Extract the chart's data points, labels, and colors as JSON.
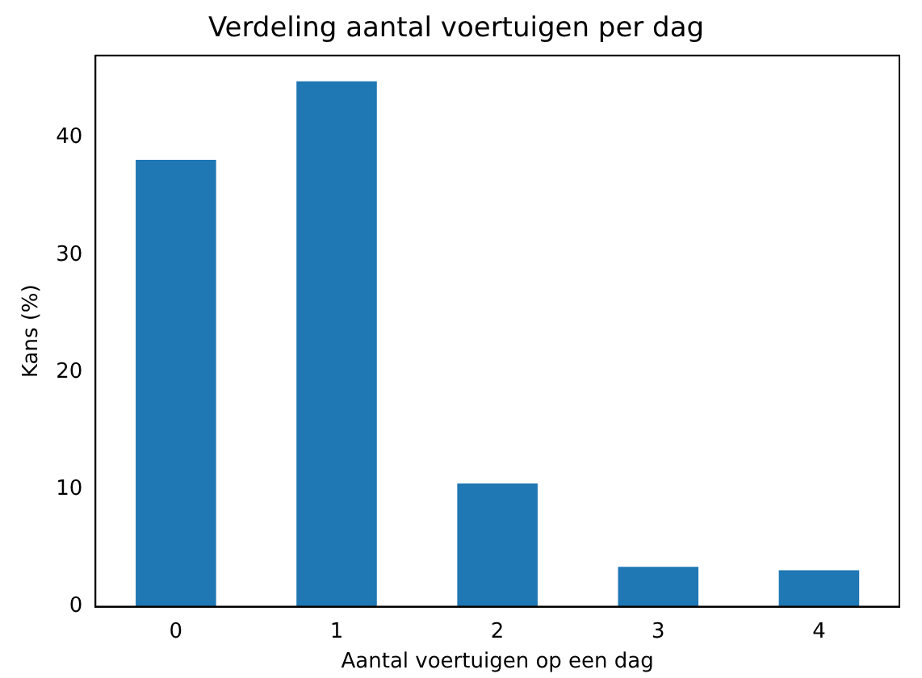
{
  "chart_data": {
    "type": "bar",
    "title": "Verdeling aantal voertuigen per dag",
    "xlabel": "Aantal voertuigen op een dag",
    "ylabel": "Kans (%)",
    "categories": [
      "0",
      "1",
      "2",
      "3",
      "4"
    ],
    "values": [
      38.1,
      44.8,
      10.5,
      3.4,
      3.1
    ],
    "color": "#1f77b4",
    "ylim": [
      0,
      47
    ],
    "yticks": [
      0,
      10,
      20,
      30,
      40
    ],
    "grid": false,
    "legend": false
  }
}
